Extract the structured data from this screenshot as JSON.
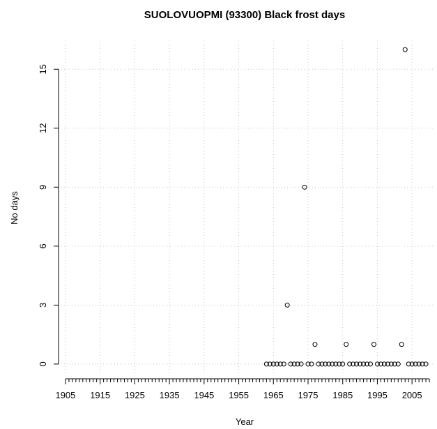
{
  "chart_data": {
    "type": "scatter",
    "title": "SUOLOVUOPMI (93300) Black frost days",
    "xlabel": "Year",
    "ylabel": "No days",
    "xlim": [
      1903,
      2011
    ],
    "ylim": [
      -0.5,
      16.5
    ],
    "x_ticks": [
      1905,
      1915,
      1925,
      1935,
      1945,
      1955,
      1965,
      1975,
      1985,
      1995,
      2005
    ],
    "y_ticks": [
      0,
      3,
      6,
      9,
      12,
      15
    ],
    "grid": true,
    "legend": "none",
    "marker": "open-circle",
    "colors": {
      "points": "#000000",
      "grid": "#c8c8c8",
      "axis": "#000000"
    },
    "series": [
      {
        "x": [
          1963,
          1964,
          1965,
          1966,
          1967,
          1968,
          1969,
          1970,
          1971,
          1972,
          1973,
          1974,
          1975,
          1976,
          1977,
          1978,
          1979,
          1980,
          1981,
          1982,
          1983,
          1984,
          1985,
          1986,
          1987,
          1988,
          1989,
          1990,
          1991,
          1992,
          1993,
          1994,
          1995,
          1996,
          1997,
          1998,
          1999,
          2000,
          2001,
          2002,
          2003,
          2004,
          2005,
          2006,
          2007,
          2008,
          2009
        ],
        "y": [
          0,
          0,
          0,
          0,
          0,
          0,
          3,
          0,
          0,
          0,
          0,
          9,
          0,
          0,
          1,
          0,
          0,
          0,
          0,
          0,
          0,
          0,
          0,
          1,
          0,
          0,
          0,
          0,
          0,
          0,
          0,
          1,
          0,
          0,
          0,
          0,
          0,
          0,
          0,
          1,
          16,
          0,
          0,
          0,
          0,
          0,
          0
        ]
      }
    ]
  }
}
